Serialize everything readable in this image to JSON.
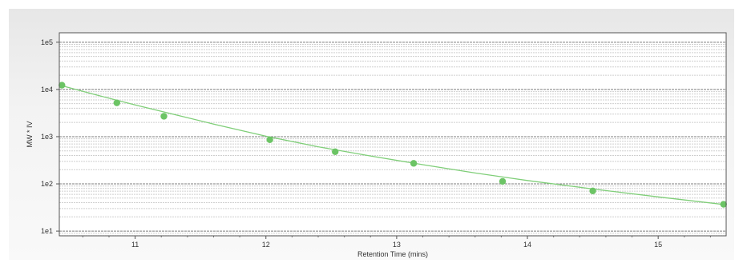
{
  "chart_data": {
    "type": "scatter",
    "title": "",
    "xlabel": "Retention Time (mins)",
    "ylabel": "MW * IV",
    "xlim": [
      10.42,
      15.52
    ],
    "ylim_log10": [
      0.9,
      5.2
    ],
    "x_ticks": [
      {
        "value": 11,
        "label": "11"
      },
      {
        "value": 12,
        "label": "12"
      },
      {
        "value": 13,
        "label": "13"
      },
      {
        "value": 14,
        "label": "14"
      },
      {
        "value": 15,
        "label": "15"
      }
    ],
    "y_ticks": [
      {
        "value": 10,
        "label": "1e1"
      },
      {
        "value": 100,
        "label": "1e2"
      },
      {
        "value": 1000,
        "label": "1e3"
      },
      {
        "value": 10000,
        "label": "1e4"
      },
      {
        "value": 100000,
        "label": "1e5"
      }
    ],
    "log_y": true,
    "grid": true,
    "series": [
      {
        "type": "scatter",
        "points": [
          {
            "x": 10.44,
            "y": 12300
          },
          {
            "x": 10.86,
            "y": 5200
          },
          {
            "x": 11.22,
            "y": 2700
          },
          {
            "x": 12.03,
            "y": 860
          },
          {
            "x": 12.53,
            "y": 480
          },
          {
            "x": 13.13,
            "y": 272
          },
          {
            "x": 13.81,
            "y": 113
          },
          {
            "x": 14.5,
            "y": 71
          },
          {
            "x": 15.5,
            "y": 37
          }
        ]
      },
      {
        "type": "line",
        "fit_points": [
          {
            "x": 10.42,
            "y": 12400
          },
          {
            "x": 10.7,
            "y": 7700
          },
          {
            "x": 11.0,
            "y": 4700
          },
          {
            "x": 11.3,
            "y": 2950
          },
          {
            "x": 11.6,
            "y": 1850
          },
          {
            "x": 12.0,
            "y": 1020
          },
          {
            "x": 12.4,
            "y": 610
          },
          {
            "x": 12.8,
            "y": 390
          },
          {
            "x": 13.2,
            "y": 255
          },
          {
            "x": 13.6,
            "y": 170
          },
          {
            "x": 14.0,
            "y": 118
          },
          {
            "x": 14.5,
            "y": 78
          },
          {
            "x": 15.0,
            "y": 53
          },
          {
            "x": 15.52,
            "y": 36
          }
        ]
      }
    ],
    "colors": {
      "marker": "#6cc465",
      "line": "#7fce78",
      "major_grid": "#7f7f7f",
      "minor_grid": "#cfcfcf"
    }
  }
}
